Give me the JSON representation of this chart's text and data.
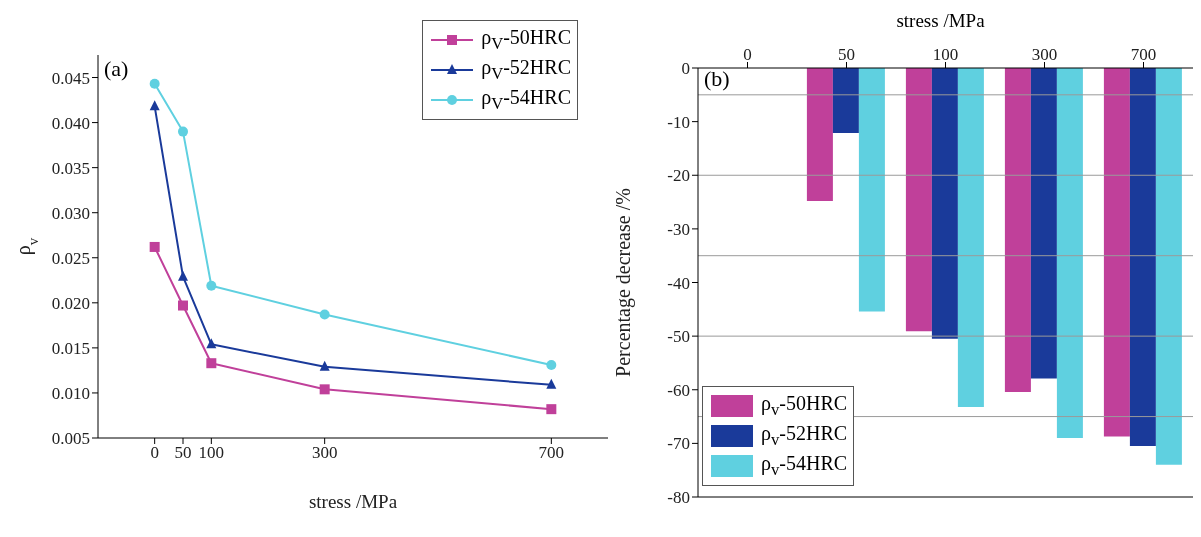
{
  "chart_data": [
    {
      "type": "line",
      "xlabel": "stress /MPa",
      "ylabel": "ρ$_{v}$",
      "annotations": [
        "(a)"
      ],
      "x": [
        0,
        50,
        100,
        300,
        700
      ],
      "series": [
        {
          "name": "ρ$_{V}$-50HRC",
          "color": "#c0409a",
          "marker": "square",
          "values": [
            0.0262,
            0.0197,
            0.0133,
            0.0104,
            0.0082
          ]
        },
        {
          "name": "ρ$_{V}$-52HRC",
          "color": "#1a3a9a",
          "marker": "triangle",
          "values": [
            0.0418,
            0.0229,
            0.0154,
            0.0129,
            0.0109
          ]
        },
        {
          "name": "ρ$_{V}$-54HRC",
          "color": "#5fd0e0",
          "marker": "circle",
          "values": [
            0.0443,
            0.039,
            0.0219,
            0.0187,
            0.0131
          ]
        }
      ],
      "xlim": [
        -100,
        800
      ],
      "xticks": [
        0,
        50,
        100,
        300,
        700
      ],
      "ylim": [
        0.005,
        0.0475
      ],
      "yticks": [
        0.005,
        {
          "value": 0.01,
          "label": "0.010"
        },
        0.015,
        {
          "value": 0.02,
          "label": "0.020"
        },
        0.025,
        {
          "value": 0.03,
          "label": "0.030"
        },
        0.035,
        {
          "value": 0.04,
          "label": "0.040"
        },
        0.045
      ],
      "grid": false,
      "legend": "top right"
    },
    {
      "type": "bar",
      "xlabel": "stress /MPa",
      "ylabel": "Percentage decrease  /%",
      "annotations": [
        "(b)"
      ],
      "categories": [
        "0",
        "50",
        "100",
        "300",
        "700"
      ],
      "series": [
        {
          "name": "ρ$_{v}$-50HRC",
          "color": "#c0409a",
          "values": [
            0,
            -24.8,
            -49.1,
            -60.4,
            -68.7
          ]
        },
        {
          "name": "ρ$_{v}$-52HRC",
          "color": "#1a3a9a",
          "values": [
            0,
            -12.1,
            -50.5,
            -57.9,
            -70.5
          ]
        },
        {
          "name": "ρ$_{v}$-54HRC",
          "color": "#5fd0e0",
          "values": [
            0,
            -45.4,
            -63.2,
            -69.0,
            -74.0
          ]
        }
      ],
      "ylim": [
        -80,
        0
      ],
      "yticks": [
        -80,
        -70,
        -60,
        -50,
        -40,
        -30,
        -20,
        -10,
        0
      ],
      "ref_lines": [
        {
          "axis": "y",
          "value": -5,
          "label": null,
          "color": "#9a9a9a"
        },
        {
          "axis": "y",
          "value": -20,
          "label": null,
          "color": "#9a9a9a"
        },
        {
          "axis": "y",
          "value": -35,
          "label": null,
          "color": "#9a9a9a"
        },
        {
          "axis": "y",
          "value": -50,
          "label": null,
          "color": "#9a9a9a"
        },
        {
          "axis": "y",
          "value": -65,
          "label": null,
          "color": "#9a9a9a"
        }
      ],
      "grid": false,
      "legend": "bottom left"
    }
  ]
}
